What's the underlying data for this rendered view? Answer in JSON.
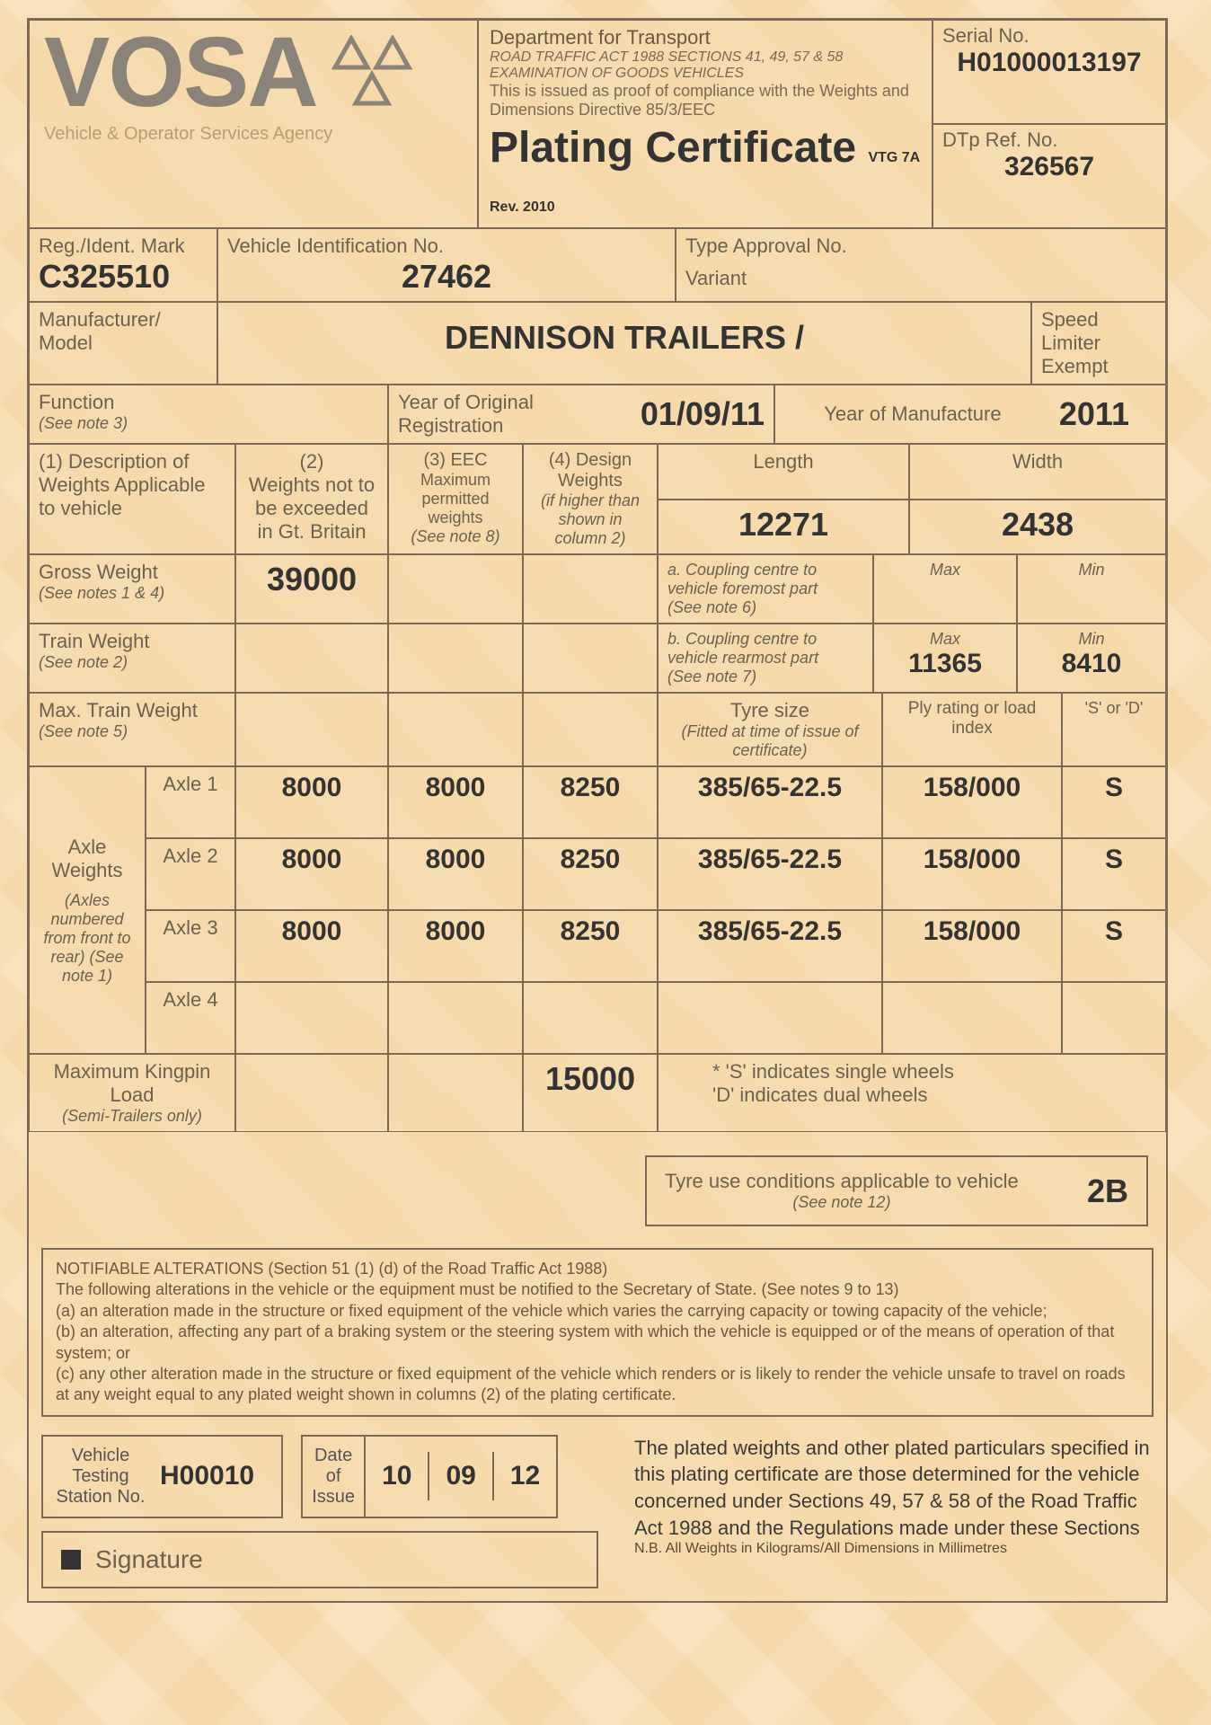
{
  "colors": {
    "page_bg": "#f5d9a8",
    "border": "#7a6a55",
    "label": "#6b6250",
    "value": "#333333",
    "logo": "#8a837a"
  },
  "header": {
    "logo_text": "VOSA",
    "tagline": "Vehicle & Operator Services Agency",
    "department": "Department for Transport",
    "act_line": "ROAD TRAFFIC ACT 1988 SECTIONS 41, 49, 57 & 58",
    "exam_line": "EXAMINATION OF GOODS VEHICLES",
    "compliance_line": "This is issued as proof of compliance with the Weights and Dimensions Directive 85/3/EEC",
    "doc_title": "Plating Certificate",
    "doc_rev": "VTG 7A Rev. 2010",
    "serial_label": "Serial No.",
    "serial_value": "H01000013197",
    "dtp_label": "DTp Ref. No.",
    "dtp_value": "326567"
  },
  "ident": {
    "reg_label": "Reg./Ident. Mark",
    "reg_value": "C325510",
    "vin_label": "Vehicle Identification No.",
    "vin_value": "27462",
    "type_approval_label": "Type Approval No.",
    "type_approval_value": "",
    "variant_label": "Variant",
    "variant_value": ""
  },
  "manu": {
    "label": "Manufacturer/ Model",
    "value": "DENNISON TRAILERS /",
    "speed_label": "Speed Limiter Exempt"
  },
  "func": {
    "function_label": "Function",
    "function_note": "(See note 3)",
    "year_reg_label": "Year of Original Registration",
    "year_reg_value": "01/09/11",
    "year_manu_label": "Year of Manufacture",
    "year_manu_value": "2011"
  },
  "weights_hdr": {
    "c1": "(1) Description of Weights Applicable to vehicle",
    "c2_a": "(2)",
    "c2_b": "Weights not to be exceeded in Gt. Britain",
    "c3_a": "(3) EEC",
    "c3_b": "Maximum permitted weights",
    "c3_c": "(See note 8)",
    "c4_a": "(4) Design Weights",
    "c4_b": "(if higher than shown in column 2)",
    "length_label": "Length",
    "length_value": "12271",
    "width_label": "Width",
    "width_value": "2438"
  },
  "gross": {
    "label": "Gross Weight",
    "note": "(See notes 1 & 4)",
    "c2": "39000",
    "coupling_a": "a. Coupling centre to vehicle foremost part",
    "coupling_a_note": "(See note 6)",
    "max_label": "Max",
    "min_label": "Min"
  },
  "train": {
    "label": "Train Weight",
    "note": "(See note 2)",
    "coupling_b": "b. Coupling centre to vehicle rearmost part",
    "coupling_b_note": "(See note 7)",
    "max_value": "11365",
    "min_value": "8410"
  },
  "maxtrain": {
    "label": "Max. Train Weight",
    "note": "(See note 5)",
    "tyre_size_label": "Tyre size",
    "tyre_size_note": "(Fitted at time of issue of certificate)",
    "ply_label": "Ply rating or load index",
    "sd_label": "'S' or 'D'"
  },
  "axle_side": {
    "label": "Axle Weights",
    "note": "(Axles numbered from front to rear) (See note 1)"
  },
  "axles": [
    {
      "name": "Axle 1",
      "c2": "8000",
      "c3": "8000",
      "c4": "8250",
      "tyre": "385/65-22.5",
      "ply": "158/000",
      "sd": "S"
    },
    {
      "name": "Axle 2",
      "c2": "8000",
      "c3": "8000",
      "c4": "8250",
      "tyre": "385/65-22.5",
      "ply": "158/000",
      "sd": "S"
    },
    {
      "name": "Axle 3",
      "c2": "8000",
      "c3": "8000",
      "c4": "8250",
      "tyre": "385/65-22.5",
      "ply": "158/000",
      "sd": "S"
    },
    {
      "name": "Axle 4",
      "c2": "",
      "c3": "",
      "c4": "",
      "tyre": "",
      "ply": "",
      "sd": ""
    }
  ],
  "kingpin": {
    "label": "Maximum Kingpin Load",
    "note": "(Semi-Trailers only)",
    "value": "15000",
    "wheels_note_s": "* 'S' indicates single wheels",
    "wheels_note_d": "'D' indicates dual wheels"
  },
  "tyre_cond": {
    "label": "Tyre use conditions applicable to vehicle",
    "note": "(See note 12)",
    "value": "2B"
  },
  "notifiable": {
    "title": "NOTIFIABLE ALTERATIONS (Section 51 (1) (d) of the Road Traffic Act 1988)",
    "intro": "The following alterations in the vehicle or the equipment must be notified to the Secretary of State. (See notes 9 to 13)",
    "a": "(a)  an alteration made in the structure or fixed equipment of the vehicle which varies the carrying capacity or towing capacity of the vehicle;",
    "b": "(b)  an alteration, affecting any part of a braking system or the steering system with which the vehicle is equipped or of the means of operation of that system; or",
    "c": "(c)  any other alteration made in the structure or fixed equipment of the vehicle which renders or is likely to render the vehicle unsafe to travel on roads at any weight equal to any plated weight shown in columns (2) of the plating certificate."
  },
  "issue": {
    "station_label": "Vehicle Testing Station No.",
    "station_value": "H00010",
    "date_label": "Date of Issue",
    "d": "10",
    "m": "09",
    "y": "12"
  },
  "signature_label": "Signature",
  "declaration": "The plated weights and other plated particulars specified in this plating certificate are those determined for the vehicle concerned under Sections 49, 57 & 58 of the Road Traffic Act 1988 and the Regulations made under these Sections",
  "nb": "N.B. All Weights in Kilograms/All Dimensions in Millimetres"
}
